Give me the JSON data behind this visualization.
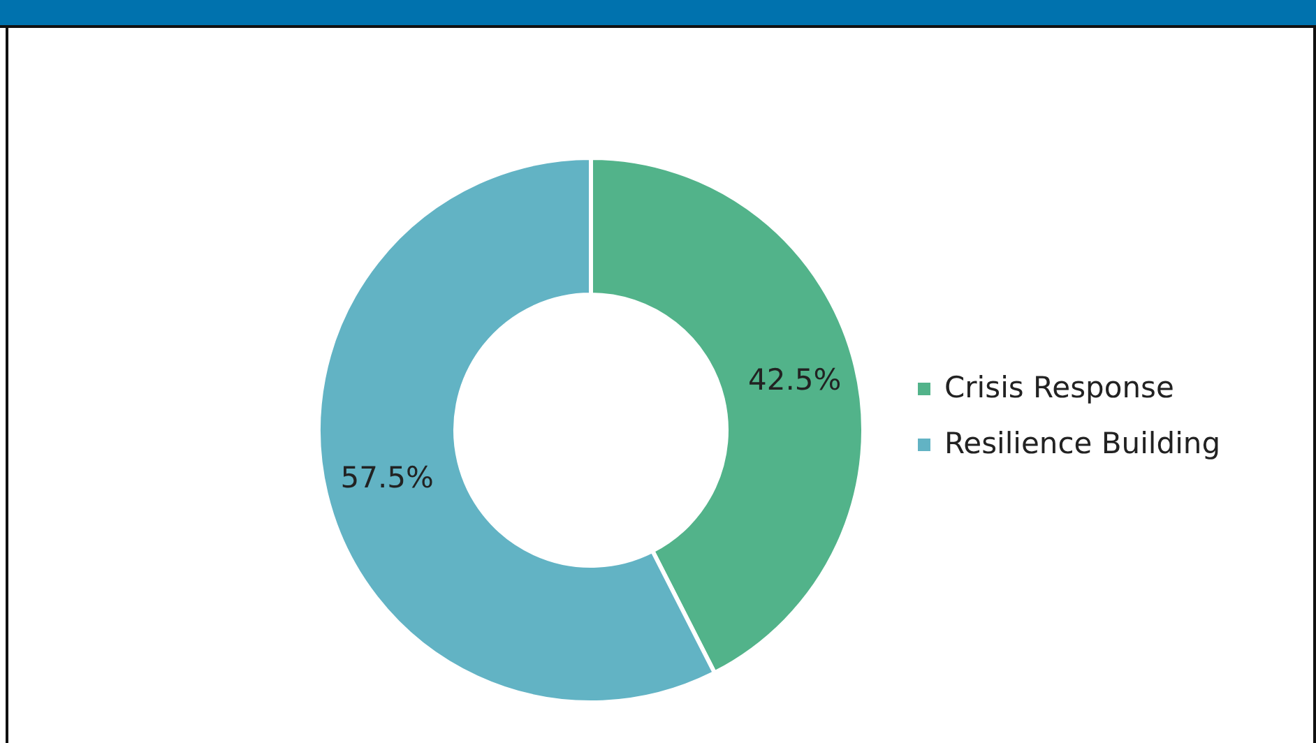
{
  "chart_data": {
    "type": "donut",
    "categories": [
      "Crisis Response",
      "Resilience Building"
    ],
    "values": [
      42.5,
      57.5
    ],
    "colors": [
      "#52b38a",
      "#62b3c4"
    ],
    "value_labels": [
      "42.5%",
      "57.5%"
    ],
    "legend": "right"
  }
}
